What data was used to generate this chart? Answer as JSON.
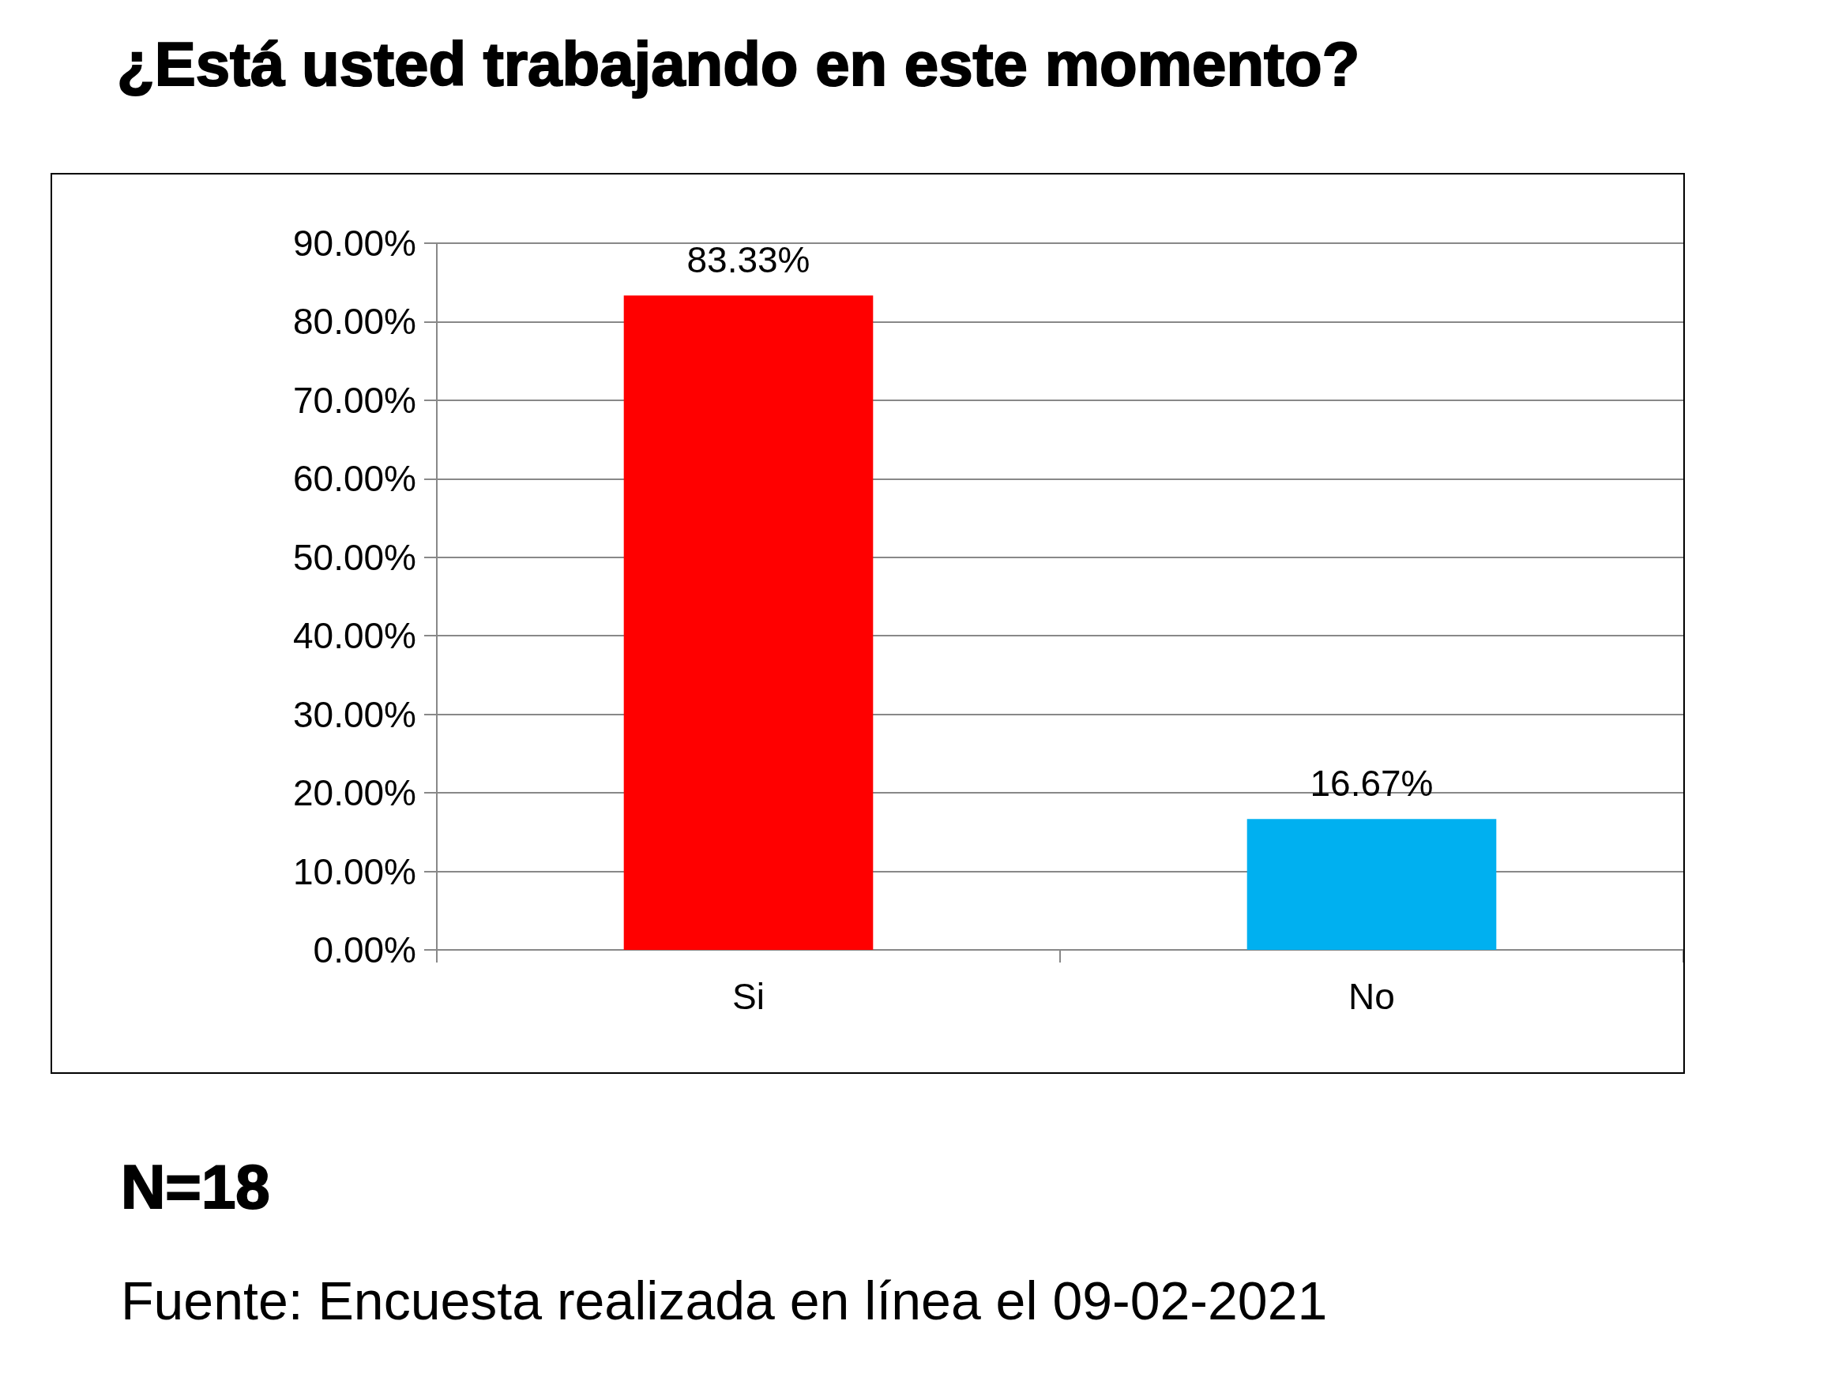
{
  "chart_data": {
    "type": "bar",
    "title": "¿Está usted trabajando en este momento?",
    "categories": [
      "Si",
      "No"
    ],
    "values": [
      83.33,
      16.67
    ],
    "colors": [
      "#ff0000",
      "#00b0f0"
    ],
    "value_labels": [
      "83.33%",
      "16.67%"
    ],
    "ylim": [
      0,
      90
    ],
    "yticks": [
      {
        "value": 0,
        "label": "0.00%"
      },
      {
        "value": 10,
        "label": "10.00%"
      },
      {
        "value": 20,
        "label": "20.00%"
      },
      {
        "value": 30,
        "label": "30.00%"
      },
      {
        "value": 40,
        "label": "40.00%"
      },
      {
        "value": 50,
        "label": "50.00%"
      },
      {
        "value": 60,
        "label": "60.00%"
      },
      {
        "value": 70,
        "label": "70.00%"
      },
      {
        "value": 80,
        "label": "80.00%"
      },
      {
        "value": 90,
        "label": "90.00%"
      }
    ],
    "grid": "y",
    "annotations": [
      "N=18",
      "Fuente: Encuesta realizada en línea el 09-02-2021"
    ]
  }
}
